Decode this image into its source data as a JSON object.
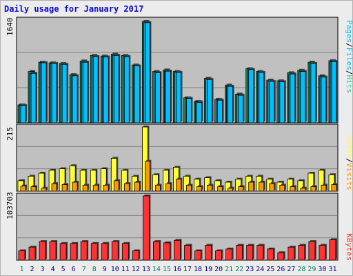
{
  "title": "Daily usage for January 2017",
  "colors": {
    "pages": "#00c0ff",
    "files": "#00c0ff",
    "hits": "#33cc99",
    "sites": "#ffff33",
    "visits": "#ff9900",
    "kbytes": "#ff3333",
    "weekend_label": "#008060",
    "day_label": "#000080"
  },
  "chart_data": [
    {
      "type": "bar",
      "panel": "hits-files-pages",
      "x": [
        "1",
        "2",
        "3",
        "4",
        "5",
        "6",
        "7",
        "8",
        "9",
        "10",
        "11",
        "12",
        "13",
        "14",
        "15",
        "16",
        "17",
        "18",
        "19",
        "20",
        "21",
        "22",
        "23",
        "24",
        "25",
        "26",
        "27",
        "28",
        "29",
        "30",
        "31"
      ],
      "weekend_days": [
        "1",
        "7",
        "8",
        "14",
        "15",
        "21",
        "22",
        "28",
        "29"
      ],
      "axis_max_label": "1640",
      "ylim": [
        0,
        1640
      ],
      "right_label": [
        "Pages",
        "/",
        "Files",
        "/",
        "Hits"
      ],
      "series": [
        {
          "name": "Hits",
          "values": [
            290,
            830,
            980,
            970,
            960,
            780,
            1000,
            1090,
            1080,
            1110,
            1090,
            935,
            1640,
            830,
            855,
            830,
            405,
            345,
            720,
            380,
            610,
            465,
            875,
            830,
            690,
            680,
            810,
            850,
            980,
            760,
            1005
          ]
        },
        {
          "name": "Files",
          "values": [
            285,
            800,
            970,
            960,
            945,
            760,
            980,
            1070,
            1065,
            1090,
            1070,
            920,
            1620,
            810,
            835,
            815,
            395,
            340,
            700,
            370,
            590,
            450,
            860,
            815,
            670,
            665,
            790,
            830,
            960,
            740,
            990
          ]
        },
        {
          "name": "Pages",
          "values": [
            280,
            800,
            970,
            960,
            945,
            760,
            980,
            1070,
            1065,
            1090,
            1070,
            920,
            1620,
            810,
            835,
            815,
            395,
            330,
            700,
            365,
            590,
            445,
            860,
            815,
            670,
            665,
            790,
            830,
            960,
            740,
            990
          ]
        }
      ]
    },
    {
      "type": "bar",
      "panel": "visits-sites",
      "x": [
        "1",
        "2",
        "3",
        "4",
        "5",
        "6",
        "7",
        "8",
        "9",
        "10",
        "11",
        "12",
        "13",
        "14",
        "15",
        "16",
        "17",
        "18",
        "19",
        "20",
        "21",
        "22",
        "23",
        "24",
        "25",
        "26",
        "27",
        "28",
        "29",
        "30",
        "31"
      ],
      "axis_max_label": "215",
      "ylim": [
        0,
        215
      ],
      "right_label": [
        "Sites",
        "/",
        "Visits"
      ],
      "series": [
        {
          "name": "Sites",
          "values": [
            35,
            50,
            60,
            70,
            75,
            85,
            70,
            70,
            75,
            110,
            70,
            50,
            215,
            55,
            70,
            80,
            50,
            40,
            45,
            35,
            30,
            40,
            50,
            50,
            40,
            30,
            40,
            35,
            60,
            70,
            55
          ]
        },
        {
          "name": "Visits",
          "values": [
            17,
            15,
            10,
            25,
            22,
            30,
            20,
            20,
            20,
            35,
            25,
            30,
            100,
            20,
            25,
            40,
            20,
            15,
            20,
            15,
            10,
            15,
            30,
            30,
            25,
            20,
            15,
            10,
            15,
            20,
            22
          ]
        }
      ]
    },
    {
      "type": "bar",
      "panel": "kbytes",
      "x": [
        "1",
        "2",
        "3",
        "4",
        "5",
        "6",
        "7",
        "8",
        "9",
        "10",
        "11",
        "12",
        "13",
        "14",
        "15",
        "16",
        "17",
        "18",
        "19",
        "20",
        "21",
        "22",
        "23",
        "24",
        "25",
        "26",
        "27",
        "28",
        "29",
        "30",
        "31"
      ],
      "axis_max_label": "103703",
      "ylim": [
        0,
        103703
      ],
      "right_label": [
        "KBytes"
      ],
      "series": [
        {
          "name": "KBytes",
          "values": [
            15000,
            21000,
            30000,
            30000,
            27000,
            27000,
            30000,
            27000,
            27000,
            30000,
            27000,
            15000,
            103703,
            30000,
            28000,
            32000,
            24000,
            15000,
            24000,
            15000,
            18000,
            24000,
            24000,
            24000,
            18000,
            12000,
            21000,
            24000,
            30000,
            24000,
            33000
          ]
        }
      ]
    }
  ]
}
